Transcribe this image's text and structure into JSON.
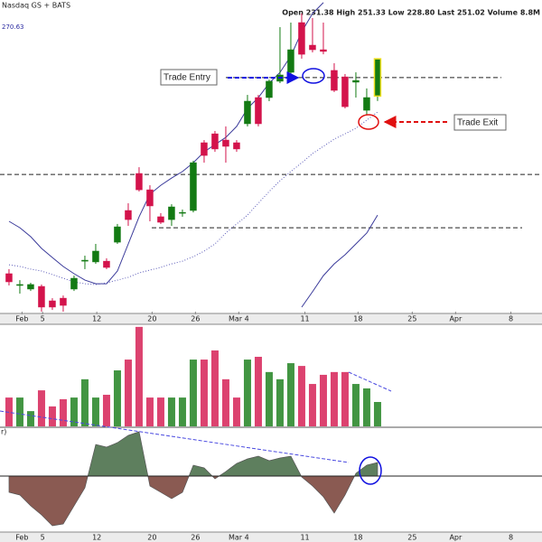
{
  "chart_data": {
    "type": "candlestick",
    "header_left": "Nasdaq GS + BATS",
    "header_right": "Open 231.38  High 251.33  Low 228.80  Last 251.02  Volume 8.8M",
    "price_label": "270.63",
    "xlim": [
      -0.83,
      49.17
    ],
    "xticks": [
      {
        "value": 1.2,
        "label": "Feb"
      },
      {
        "value": 3.1,
        "label": "5"
      },
      {
        "value": 8.1,
        "label": "12"
      },
      {
        "value": 13.2,
        "label": "20"
      },
      {
        "value": 17.2,
        "label": "26"
      },
      {
        "value": 21.2,
        "label": "Mar 4"
      },
      {
        "value": 27.3,
        "label": "11"
      },
      {
        "value": 32.2,
        "label": "18"
      },
      {
        "value": 37.2,
        "label": "25"
      },
      {
        "value": 41.2,
        "label": "Apr"
      },
      {
        "value": 46.3,
        "label": "8"
      }
    ],
    "ylim": [
      117.8,
      282
    ],
    "up_color": "#137a13",
    "down_color": "#d3134b",
    "open": [
      137.8,
      131.6,
      129.7,
      131.1,
      123.5,
      124.9,
      129.7,
      144.4,
      144.0,
      144.4,
      154.4,
      171.1,
      190.6,
      182.0,
      167.8,
      166.3,
      169.7,
      171.1,
      206.8,
      211.5,
      208.2,
      206.8,
      216.8,
      230.6,
      230.6,
      239.2,
      243.9,
      270.1,
      258.2,
      255.8,
      244.9,
      241.5,
      238.7,
      223.9,
      231.38
    ],
    "high": [
      140.2,
      134.4,
      133.0,
      132.1,
      124.9,
      126.3,
      136.8,
      147.3,
      153.5,
      145.9,
      164.0,
      174.9,
      193.9,
      184.4,
      169.7,
      174.4,
      171.6,
      197.3,
      208.2,
      213.0,
      215.4,
      208.2,
      232.0,
      232.0,
      240.1,
      267.7,
      270.1,
      274.9,
      272.5,
      270.1,
      248.7,
      243.0,
      243.9,
      235.4,
      251.33
    ],
    "low": [
      131.6,
      127.3,
      128.7,
      117.8,
      118.7,
      117.8,
      128.7,
      140.2,
      143.0,
      140.2,
      153.5,
      163.0,
      181.1,
      165.4,
      164.0,
      163.0,
      167.8,
      170.1,
      196.3,
      202.0,
      196.3,
      202.0,
      215.4,
      215.4,
      228.7,
      238.2,
      243.0,
      251.1,
      254.4,
      253.4,
      233.5,
      224.9,
      230.6,
      221.6,
      228.8
    ],
    "close": [
      133.5,
      132.1,
      132.1,
      120.2,
      120.2,
      121.1,
      135.4,
      144.9,
      149.7,
      141.1,
      162.5,
      166.3,
      182.0,
      173.5,
      164.9,
      173.0,
      170.1,
      196.3,
      200.1,
      203.5,
      204.9,
      203.5,
      228.7,
      216.8,
      239.2,
      242.5,
      255.8,
      253.4,
      255.8,
      254.9,
      234.4,
      225.8,
      239.6,
      230.6,
      251.02
    ],
    "overlays": [
      {
        "color": "#3a3a9a",
        "style": "solid",
        "values": [
          165.4,
          162.0,
          157.3,
          151.1,
          146.3,
          141.6,
          137.8,
          134.4,
          132.5,
          132.5,
          139.2,
          153.5,
          167.8,
          179.7,
          184.4,
          188.2,
          191.6,
          196.3,
          202.0,
          205.8,
          209.6,
          215.4,
          224.9,
          230.6,
          238.2,
          243.9,
          252.5,
          265.3,
          274.9,
          280.6,
          null,
          null,
          null,
          null,
          null
        ]
      },
      {
        "color": "#5a5ab8",
        "style": "dotted",
        "values": [
          142.5,
          141.6,
          140.2,
          139.2,
          137.3,
          135.4,
          133.5,
          132.5,
          132.1,
          133.0,
          134.4,
          135.9,
          138.2,
          139.7,
          141.1,
          143.0,
          144.4,
          146.8,
          149.7,
          153.5,
          159.2,
          164.0,
          168.7,
          174.9,
          181.1,
          186.8,
          191.6,
          196.3,
          201.1,
          204.9,
          208.7,
          211.5,
          214.4,
          218.7,
          223.0
        ]
      },
      {
        "color": "#3a3a9a",
        "style": "solid",
        "values": [
          null,
          null,
          null,
          null,
          null,
          null,
          null,
          null,
          null,
          null,
          null,
          null,
          null,
          null,
          null,
          null,
          null,
          null,
          null,
          null,
          null,
          null,
          null,
          null,
          null,
          null,
          null,
          120.2,
          128.3,
          136.8,
          143.0,
          147.8,
          153.5,
          159.2,
          168.7
        ]
      }
    ],
    "levels": [
      241.1,
      190.1,
      162.0
    ],
    "annotations": [
      "Trade Entry",
      "Trade Exit"
    ],
    "volume": {
      "ylim": [
        0,
        36.5
      ],
      "values": [
        10.4,
        10.4,
        5.5,
        13.0,
        7.2,
        9.8,
        10.4,
        17.0,
        10.4,
        11.4,
        20.2,
        24.1,
        35.9,
        10.4,
        10.4,
        10.4,
        10.4,
        24.1,
        24.1,
        27.4,
        17.0,
        10.4,
        24.1,
        25.1,
        19.6,
        17.0,
        22.8,
        21.8,
        15.3,
        18.6,
        19.6,
        19.6,
        15.3,
        13.7,
        8.8
      ]
    },
    "oscillator": {
      "label": "r)",
      "ylim": [
        -6.1,
        5.3
      ],
      "up_color": "#5e7f5e",
      "down_color": "#8a5a52",
      "values": [
        -1.8,
        -2.1,
        -3.3,
        -4.3,
        -5.5,
        -5.3,
        -3.3,
        -1.3,
        3.5,
        3.2,
        3.7,
        4.5,
        4.9,
        -1.1,
        -1.8,
        -2.5,
        -1.8,
        1.2,
        0.9,
        -0.3,
        0.5,
        1.4,
        1.9,
        2.2,
        1.7,
        2.0,
        2.2,
        -0.1,
        -1.1,
        -2.3,
        -4.1,
        -2.1,
        0.3,
        1.2,
        1.5
      ]
    }
  }
}
